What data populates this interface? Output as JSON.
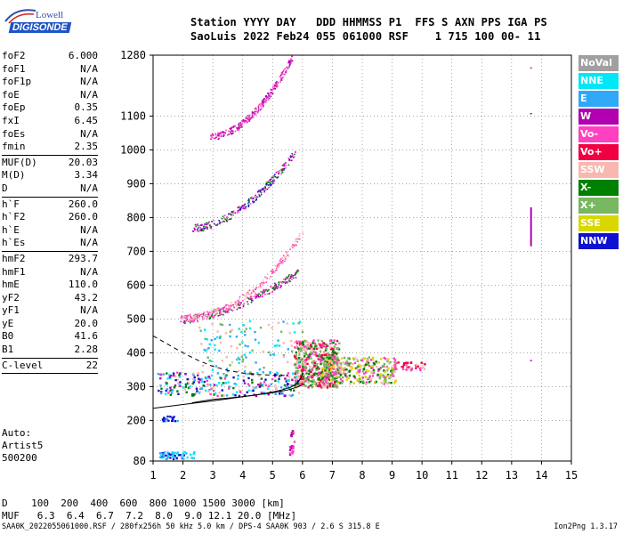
{
  "logo": {
    "top": "Lowell",
    "bottom": "DIGISONDE"
  },
  "header": {
    "line1": "Station YYYY DAY   DDD HHMMSS P1  FFS S AXN PPS IGA PS",
    "line2": "SaoLuis 2022 Feb24 055 061000 RSF    1 715 100 00- 11"
  },
  "parameters": [
    {
      "label": "foF2",
      "value": "6.000"
    },
    {
      "label": "foF1",
      "value": "N/A"
    },
    {
      "label": "foF1p",
      "value": "N/A"
    },
    {
      "label": "foE",
      "value": "N/A"
    },
    {
      "label": "foEp",
      "value": "0.35"
    },
    {
      "label": "fxI",
      "value": "6.45"
    },
    {
      "label": "foEs",
      "value": "N/A"
    },
    {
      "label": "fmin",
      "value": "2.35"
    },
    {
      "sep": true
    },
    {
      "label": "MUF(D)",
      "value": "20.03"
    },
    {
      "label": "M(D)",
      "value": "3.34"
    },
    {
      "label": "D",
      "value": "N/A"
    },
    {
      "sep": true
    },
    {
      "label": "h`F",
      "value": "260.0"
    },
    {
      "label": "h`F2",
      "value": "260.0"
    },
    {
      "label": "h`E",
      "value": "N/A"
    },
    {
      "label": "h`Es",
      "value": "N/A"
    },
    {
      "sep": true
    },
    {
      "label": "hmF2",
      "value": "293.7"
    },
    {
      "label": "hmF1",
      "value": "N/A"
    },
    {
      "label": "hmE",
      "value": "110.0"
    },
    {
      "label": "yF2",
      "value": "43.2"
    },
    {
      "label": "yF1",
      "value": "N/A"
    },
    {
      "label": "yE",
      "value": "20.0"
    },
    {
      "label": "B0",
      "value": "41.6"
    },
    {
      "label": "B1",
      "value": "2.28"
    },
    {
      "sep": true
    },
    {
      "label": "C-level",
      "value": "22"
    },
    {
      "sep": true
    }
  ],
  "auto_text": "Auto:\nArtist5\n500200",
  "legend": [
    {
      "label": "NoVal",
      "color": "#a0a0a0"
    },
    {
      "label": "NNE",
      "color": "#00e8f8"
    },
    {
      "label": "E",
      "color": "#30a8f8"
    },
    {
      "label": "W",
      "color": "#b000b0"
    },
    {
      "label": "Vo-",
      "color": "#ff40c0"
    },
    {
      "label": "Vo+",
      "color": "#f00040"
    },
    {
      "label": "SSW",
      "color": "#f8b8b0"
    },
    {
      "label": "X-",
      "color": "#008000"
    },
    {
      "label": "X+",
      "color": "#78b860"
    },
    {
      "label": "SSE",
      "color": "#d8d800"
    },
    {
      "label": "NNW",
      "color": "#1010d0"
    }
  ],
  "dmuf": {
    "d_line": "D    100  200  400  600  800 1000 1500 3000 [km]",
    "muf_line": "MUF   6.3  6.4  6.7  7.2  8.0  9.0 12.1 20.0 [MHz]"
  },
  "footer": "SAA0K_2022055061000.RSF / 280fx256h 50 kHz 5.0 km / DPS-4 SAA0K 903 / 2.6 S 315.8 E",
  "version": "Ion2Png 1.3.17",
  "chart_data": {
    "type": "scatter",
    "title": "",
    "xlabel": "",
    "ylabel": "",
    "xlim": [
      1,
      15
    ],
    "ylim": [
      80,
      1280
    ],
    "x_ticks": [
      1,
      2,
      3,
      4,
      5,
      6,
      7,
      8,
      9,
      10,
      11,
      12,
      13,
      14,
      15
    ],
    "y_ticks": [
      80,
      200,
      300,
      400,
      500,
      600,
      700,
      800,
      900,
      1000,
      1100,
      1280
    ],
    "grid": true,
    "traces": [
      {
        "name": "O-trace virtual height",
        "color": "#000000",
        "style": "solid",
        "x": [
          1.0,
          2.0,
          3.0,
          4.0,
          4.5,
          5.0,
          5.3,
          5.6,
          5.8,
          5.95,
          6.0
        ],
        "y": [
          236,
          247,
          258,
          270,
          276,
          284,
          290,
          298,
          308,
          325,
          340
        ]
      },
      {
        "name": "O-trace lower",
        "color": "#000000",
        "style": "solid",
        "x": [
          2.3,
          3.0,
          4.0,
          4.5,
          5.0,
          5.5,
          5.8,
          6.0
        ],
        "y": [
          252,
          262,
          270,
          276,
          282,
          290,
          298,
          305
        ]
      },
      {
        "name": "profile",
        "color": "#000000",
        "style": "dashed",
        "x": [
          1.0,
          1.5,
          2.0,
          2.5,
          3.0,
          3.5,
          4.0,
          4.5,
          5.0,
          5.4
        ],
        "y": [
          450,
          425,
          400,
          378,
          360,
          348,
          340,
          336,
          334,
          333
        ]
      }
    ],
    "echo_groups": [
      {
        "kind": "line",
        "x0": 2.0,
        "y0": 500,
        "x1": 5.85,
        "y1": 640,
        "curve": 1.6,
        "colors": [
          "#ff40c0",
          "#b000b0",
          "#008000"
        ]
      },
      {
        "kind": "line",
        "x0": 1.9,
        "y0": 505,
        "x1": 6.0,
        "y1": 760,
        "curve": 2.2,
        "colors": [
          "#ff40c0",
          "#f8b8b0"
        ]
      },
      {
        "kind": "line",
        "x0": 2.3,
        "y0": 770,
        "x1": 5.75,
        "y1": 995,
        "curve": 1.8,
        "colors": [
          "#ff40c0",
          "#b000b0",
          "#1010d0",
          "#008000"
        ]
      },
      {
        "kind": "line",
        "x0": 2.9,
        "y0": 1040,
        "x1": 5.65,
        "y1": 1275,
        "curve": 1.9,
        "colors": [
          "#ff40c0",
          "#b000b0"
        ]
      },
      {
        "kind": "blob",
        "x0": 5.7,
        "x1": 7.2,
        "y0": 300,
        "y1": 440,
        "n": 520,
        "colors": [
          "#ff40c0",
          "#f00040",
          "#f8b8b0",
          "#008000",
          "#78b860"
        ]
      },
      {
        "kind": "blob",
        "x0": 6.6,
        "x1": 9.1,
        "y0": 310,
        "y1": 390,
        "n": 330,
        "colors": [
          "#78b860",
          "#d8d800",
          "#008000",
          "#ff40c0",
          "#f8b8b0"
        ]
      },
      {
        "kind": "blob",
        "x0": 9.0,
        "x1": 10.1,
        "y0": 350,
        "y1": 375,
        "n": 40,
        "colors": [
          "#ff40c0",
          "#f8b8b0",
          "#f00040"
        ]
      },
      {
        "kind": "blob",
        "x0": 1.1,
        "x1": 5.9,
        "y0": 275,
        "y1": 345,
        "n": 260,
        "colors": [
          "#1010d0",
          "#30a8f8",
          "#008000",
          "#ff40c0",
          "#b000b0",
          "#00e8f8",
          "#f8b8b0"
        ]
      },
      {
        "kind": "blob",
        "x0": 1.2,
        "x1": 2.4,
        "y0": 88,
        "y1": 110,
        "n": 60,
        "colors": [
          "#1010d0",
          "#30a8f8",
          "#00e8f8"
        ]
      },
      {
        "kind": "blob",
        "x0": 1.2,
        "x1": 1.8,
        "y0": 200,
        "y1": 215,
        "n": 20,
        "colors": [
          "#1010d0",
          "#30a8f8"
        ]
      },
      {
        "kind": "blob",
        "x0": 5.55,
        "x1": 5.7,
        "y0": 100,
        "y1": 180,
        "n": 25,
        "colors": [
          "#ff40c0",
          "#b000b0"
        ]
      },
      {
        "kind": "blob",
        "x0": 2.5,
        "x1": 6.0,
        "y0": 340,
        "y1": 500,
        "n": 120,
        "colors": [
          "#00e8f8",
          "#78b860",
          "#f8b8b0",
          "#30a8f8"
        ]
      }
    ],
    "markers": [
      {
        "x": 13.65,
        "y0": 715,
        "y1": 830,
        "color": "#b000b0"
      },
      {
        "x": 13.65,
        "y0": 1240,
        "y1": 1244,
        "color": "#c04000"
      },
      {
        "x": 13.65,
        "y0": 1105,
        "y1": 1109,
        "color": "#b000b0"
      },
      {
        "x": 13.65,
        "y0": 375,
        "y1": 379,
        "color": "#b000b0"
      }
    ]
  }
}
